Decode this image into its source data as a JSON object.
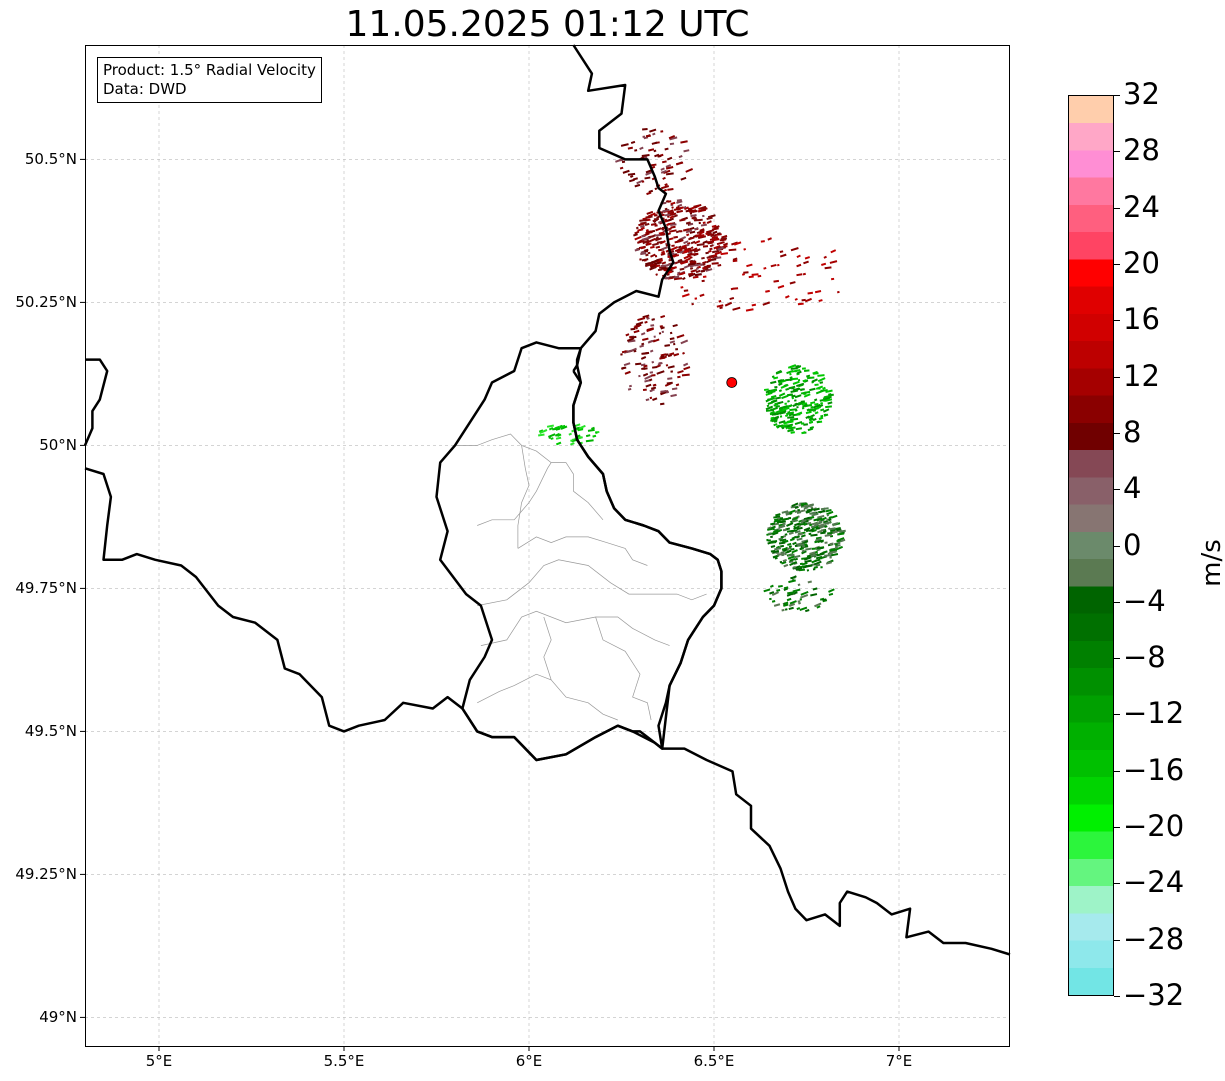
{
  "title": "11.05.2025 01:12 UTC",
  "legend": {
    "product": "Product: 1.5° Radial Velocity",
    "source": "Data: DWD"
  },
  "map": {
    "lon_range": [
      4.8,
      7.3
    ],
    "lat_range": [
      48.95,
      50.7
    ],
    "x_ticks": [
      {
        "value": 5.0,
        "label": "5°E"
      },
      {
        "value": 5.5,
        "label": "5.5°E"
      },
      {
        "value": 6.0,
        "label": "6°E"
      },
      {
        "value": 6.5,
        "label": "6.5°E"
      },
      {
        "value": 7.0,
        "label": "7°E"
      }
    ],
    "y_ticks": [
      {
        "value": 49.0,
        "label": "49°N"
      },
      {
        "value": 49.25,
        "label": "49.25°N"
      },
      {
        "value": 49.5,
        "label": "49.5°N"
      },
      {
        "value": 49.75,
        "label": "49.75°N"
      },
      {
        "value": 50.0,
        "label": "50°N"
      },
      {
        "value": 50.25,
        "label": "50.25°N"
      },
      {
        "value": 50.5,
        "label": "50.5°N"
      }
    ],
    "grid": true,
    "radar_site": {
      "lon": 6.548,
      "lat": 50.11,
      "color": "#ff0000"
    },
    "national_border": [
      [
        [
          6.12,
          50.7
        ],
        [
          6.17,
          50.65
        ],
        [
          6.16,
          50.62
        ],
        [
          6.26,
          50.63
        ],
        [
          6.25,
          50.58
        ],
        [
          6.19,
          50.55
        ],
        [
          6.19,
          50.52
        ],
        [
          6.26,
          50.5
        ],
        [
          6.32,
          50.5
        ],
        [
          6.34,
          50.47
        ],
        [
          6.35,
          50.45
        ],
        [
          6.37,
          50.44
        ],
        [
          6.35,
          50.41
        ],
        [
          6.37,
          50.38
        ],
        [
          6.38,
          50.34
        ],
        [
          6.39,
          50.32
        ],
        [
          6.36,
          50.29
        ],
        [
          6.35,
          50.26
        ],
        [
          6.29,
          50.27
        ],
        [
          6.23,
          50.25
        ],
        [
          6.19,
          50.23
        ],
        [
          6.18,
          50.2
        ],
        [
          6.14,
          50.17
        ],
        [
          6.13,
          50.14
        ],
        [
          6.14,
          50.11
        ],
        [
          6.12,
          50.07
        ],
        [
          6.12,
          50.04
        ],
        [
          6.13,
          50.01
        ],
        [
          6.16,
          49.98
        ],
        [
          6.2,
          49.95
        ],
        [
          6.21,
          49.92
        ],
        [
          6.23,
          49.89
        ],
        [
          6.26,
          49.87
        ],
        [
          6.31,
          49.86
        ],
        [
          6.35,
          49.85
        ],
        [
          6.38,
          49.83
        ],
        [
          6.44,
          49.82
        ],
        [
          6.49,
          49.81
        ],
        [
          6.51,
          49.8
        ],
        [
          6.52,
          49.78
        ],
        [
          6.52,
          49.75
        ],
        [
          6.5,
          49.72
        ],
        [
          6.47,
          49.7
        ],
        [
          6.43,
          49.66
        ],
        [
          6.41,
          49.62
        ],
        [
          6.38,
          49.58
        ],
        [
          6.37,
          49.55
        ],
        [
          6.35,
          49.51
        ],
        [
          6.36,
          49.47
        ],
        [
          6.42,
          49.47
        ],
        [
          6.48,
          49.45
        ],
        [
          6.55,
          49.43
        ],
        [
          6.56,
          49.39
        ],
        [
          6.6,
          49.37
        ],
        [
          6.6,
          49.33
        ],
        [
          6.65,
          49.3
        ],
        [
          6.68,
          49.26
        ],
        [
          6.7,
          49.22
        ],
        [
          6.72,
          49.19
        ],
        [
          6.75,
          49.17
        ],
        [
          6.8,
          49.18
        ],
        [
          6.84,
          49.16
        ],
        [
          6.84,
          49.2
        ],
        [
          6.86,
          49.22
        ],
        [
          6.91,
          49.21
        ],
        [
          6.94,
          49.2
        ],
        [
          6.98,
          49.18
        ],
        [
          7.03,
          49.19
        ],
        [
          7.02,
          49.14
        ],
        [
          7.08,
          49.15
        ],
        [
          7.12,
          49.13
        ],
        [
          7.18,
          49.13
        ],
        [
          7.25,
          49.12
        ],
        [
          7.3,
          49.11
        ]
      ],
      [
        [
          4.8,
          50.15
        ],
        [
          4.84,
          50.15
        ],
        [
          4.86,
          50.13
        ],
        [
          4.84,
          50.08
        ],
        [
          4.82,
          50.06
        ],
        [
          4.82,
          50.03
        ],
        [
          4.8,
          50.0
        ]
      ],
      [
        [
          4.8,
          49.96
        ],
        [
          4.85,
          49.95
        ],
        [
          4.87,
          49.91
        ],
        [
          4.86,
          49.86
        ],
        [
          4.85,
          49.8
        ],
        [
          4.9,
          49.8
        ],
        [
          4.94,
          49.81
        ],
        [
          4.99,
          49.8
        ],
        [
          5.06,
          49.79
        ],
        [
          5.1,
          49.77
        ],
        [
          5.16,
          49.72
        ],
        [
          5.2,
          49.7
        ],
        [
          5.26,
          49.69
        ],
        [
          5.32,
          49.66
        ],
        [
          5.34,
          49.61
        ],
        [
          5.38,
          49.6
        ],
        [
          5.44,
          49.56
        ],
        [
          5.46,
          49.51
        ],
        [
          5.5,
          49.5
        ],
        [
          5.54,
          49.51
        ],
        [
          5.61,
          49.52
        ],
        [
          5.66,
          49.55
        ],
        [
          5.74,
          49.54
        ],
        [
          5.78,
          49.56
        ],
        [
          5.82,
          49.54
        ],
        [
          5.86,
          49.5
        ],
        [
          5.9,
          49.49
        ],
        [
          5.96,
          49.49
        ],
        [
          6.02,
          49.45
        ],
        [
          6.1,
          49.46
        ],
        [
          6.18,
          49.49
        ],
        [
          6.24,
          49.51
        ],
        [
          6.28,
          49.5
        ],
        [
          6.3,
          49.5
        ],
        [
          6.34,
          49.48
        ],
        [
          6.36,
          49.47
        ]
      ]
    ],
    "luxembourg_border": [
      [
        6.12,
        50.13
      ],
      [
        6.13,
        50.14
      ],
      [
        6.13,
        50.15
      ],
      [
        6.14,
        50.17
      ],
      [
        6.12,
        50.17
      ],
      [
        6.08,
        50.17
      ],
      [
        6.02,
        50.18
      ],
      [
        5.98,
        50.17
      ],
      [
        5.96,
        50.13
      ],
      [
        5.9,
        50.11
      ],
      [
        5.88,
        50.08
      ],
      [
        5.86,
        50.06
      ],
      [
        5.8,
        50.0
      ],
      [
        5.76,
        49.97
      ],
      [
        5.75,
        49.91
      ],
      [
        5.78,
        49.85
      ],
      [
        5.76,
        49.8
      ],
      [
        5.83,
        49.74
      ],
      [
        5.87,
        49.72
      ],
      [
        5.9,
        49.66
      ],
      [
        5.88,
        49.63
      ],
      [
        5.84,
        49.59
      ],
      [
        5.82,
        49.54
      ],
      [
        5.86,
        49.5
      ],
      [
        5.9,
        49.49
      ],
      [
        5.96,
        49.49
      ],
      [
        6.02,
        49.45
      ],
      [
        6.1,
        49.46
      ],
      [
        6.18,
        49.49
      ],
      [
        6.24,
        49.51
      ],
      [
        6.28,
        49.5
      ],
      [
        6.34,
        49.48
      ],
      [
        6.36,
        49.47
      ],
      [
        6.38,
        49.58
      ],
      [
        6.41,
        49.62
      ],
      [
        6.43,
        49.66
      ],
      [
        6.47,
        49.7
      ],
      [
        6.5,
        49.72
      ],
      [
        6.52,
        49.75
      ],
      [
        6.52,
        49.78
      ],
      [
        6.51,
        49.8
      ],
      [
        6.49,
        49.81
      ],
      [
        6.44,
        49.82
      ],
      [
        6.38,
        49.83
      ],
      [
        6.35,
        49.85
      ],
      [
        6.31,
        49.86
      ],
      [
        6.26,
        49.87
      ],
      [
        6.23,
        49.89
      ],
      [
        6.21,
        49.92
      ],
      [
        6.2,
        49.95
      ],
      [
        6.16,
        49.98
      ],
      [
        6.13,
        50.01
      ],
      [
        6.12,
        50.04
      ],
      [
        6.12,
        50.07
      ],
      [
        6.14,
        50.11
      ],
      [
        6.12,
        50.13
      ]
    ],
    "internal_borders": [
      [
        [
          5.8,
          50.0
        ],
        [
          5.86,
          50.0
        ],
        [
          5.9,
          50.01
        ],
        [
          5.95,
          50.02
        ],
        [
          5.98,
          50.0
        ],
        [
          6.02,
          49.99
        ],
        [
          6.06,
          49.97
        ],
        [
          6.1,
          49.97
        ],
        [
          6.12,
          49.95
        ],
        [
          6.12,
          49.92
        ]
      ],
      [
        [
          5.86,
          49.86
        ],
        [
          5.9,
          49.87
        ],
        [
          5.96,
          49.87
        ],
        [
          6.0,
          49.9
        ],
        [
          6.02,
          49.92
        ],
        [
          6.05,
          49.96
        ],
        [
          6.06,
          49.97
        ]
      ],
      [
        [
          5.97,
          49.82
        ],
        [
          6.02,
          49.84
        ],
        [
          6.06,
          49.83
        ],
        [
          6.1,
          49.84
        ],
        [
          6.16,
          49.84
        ],
        [
          6.21,
          49.83
        ],
        [
          6.26,
          49.82
        ],
        [
          6.28,
          49.8
        ],
        [
          6.32,
          49.79
        ]
      ],
      [
        [
          5.86,
          49.72
        ],
        [
          5.94,
          49.73
        ],
        [
          6.0,
          49.76
        ],
        [
          6.04,
          49.79
        ],
        [
          6.08,
          49.8
        ],
        [
          6.16,
          49.79
        ],
        [
          6.22,
          49.76
        ],
        [
          6.27,
          49.74
        ],
        [
          6.34,
          49.74
        ],
        [
          6.4,
          49.74
        ],
        [
          6.44,
          49.73
        ],
        [
          6.48,
          49.74
        ]
      ],
      [
        [
          5.87,
          49.65
        ],
        [
          5.94,
          49.66
        ],
        [
          5.98,
          49.7
        ],
        [
          6.02,
          49.71
        ],
        [
          6.1,
          49.69
        ],
        [
          6.18,
          49.7
        ],
        [
          6.24,
          49.7
        ],
        [
          6.28,
          49.68
        ],
        [
          6.34,
          49.66
        ],
        [
          6.38,
          49.65
        ]
      ],
      [
        [
          5.86,
          49.55
        ],
        [
          5.92,
          49.57
        ],
        [
          5.96,
          49.58
        ],
        [
          6.02,
          49.6
        ],
        [
          6.06,
          49.59
        ],
        [
          6.1,
          49.56
        ],
        [
          6.16,
          49.55
        ],
        [
          6.2,
          49.53
        ],
        [
          6.24,
          49.52
        ]
      ],
      [
        [
          6.06,
          49.59
        ],
        [
          6.04,
          49.63
        ],
        [
          6.06,
          49.66
        ],
        [
          6.04,
          49.7
        ]
      ],
      [
        [
          6.18,
          49.7
        ],
        [
          6.2,
          49.66
        ],
        [
          6.26,
          49.64
        ],
        [
          6.3,
          49.6
        ],
        [
          6.28,
          49.56
        ],
        [
          6.32,
          49.55
        ],
        [
          6.33,
          49.52
        ]
      ],
      [
        [
          5.98,
          50.0
        ],
        [
          5.99,
          49.96
        ],
        [
          6.0,
          49.93
        ],
        [
          5.98,
          49.9
        ],
        [
          5.97,
          49.86
        ],
        [
          5.97,
          49.82
        ]
      ],
      [
        [
          6.12,
          49.92
        ],
        [
          6.16,
          49.9
        ],
        [
          6.2,
          49.87
        ]
      ]
    ],
    "echo_clusters": [
      {
        "lon": 6.4,
        "lat": 50.36,
        "rlon": 0.12,
        "rlat": 0.07,
        "n": 380,
        "colors": [
          "#6b0000",
          "#8b0000",
          "#8b0000",
          "#a50000",
          "#7a0c0c",
          "#844250"
        ]
      },
      {
        "lon": 6.33,
        "lat": 50.5,
        "rlon": 0.1,
        "rlat": 0.06,
        "n": 70,
        "colors": [
          "#8b0000",
          "#6b0000",
          "#844250"
        ]
      },
      {
        "lon": 6.6,
        "lat": 50.3,
        "rlon": 0.26,
        "rlat": 0.07,
        "n": 80,
        "colors": [
          "#8b0000",
          "#a50000",
          "#c00000"
        ]
      },
      {
        "lon": 6.33,
        "lat": 50.15,
        "rlon": 0.09,
        "rlat": 0.08,
        "n": 120,
        "colors": [
          "#6b0000",
          "#8b0000",
          "#844250"
        ]
      },
      {
        "lon": 6.72,
        "lat": 50.08,
        "rlon": 0.09,
        "rlat": 0.06,
        "n": 220,
        "colors": [
          "#00b400",
          "#00c800",
          "#009000",
          "#00a000"
        ]
      },
      {
        "lon": 6.74,
        "lat": 49.84,
        "rlon": 0.1,
        "rlat": 0.06,
        "n": 320,
        "colors": [
          "#007000",
          "#006400",
          "#5c7a55",
          "#008000",
          "#4f7a4f"
        ]
      },
      {
        "lon": 6.72,
        "lat": 49.74,
        "rlon": 0.09,
        "rlat": 0.03,
        "n": 50,
        "colors": [
          "#006400",
          "#008000",
          "#5c7a55"
        ]
      },
      {
        "lon": 6.1,
        "lat": 50.02,
        "rlon": 0.1,
        "rlat": 0.02,
        "n": 40,
        "colors": [
          "#00c800",
          "#00b400",
          "#28e428"
        ]
      }
    ]
  },
  "colorbar": {
    "unit": "m/s",
    "min": -32,
    "max": 32,
    "step": 4,
    "colors": [
      "#72e5e5",
      "#8ee8eb",
      "#a6eaed",
      "#9ef3c8",
      "#64f57f",
      "#2cf53c",
      "#00f000",
      "#00d400",
      "#00c000",
      "#00b000",
      "#00a000",
      "#009000",
      "#008000",
      "#007000",
      "#006400",
      "#5b7a52",
      "#6b8a6b",
      "#877572",
      "#896069",
      "#854855",
      "#700000",
      "#8a0000",
      "#a50000",
      "#bd0000",
      "#d10000",
      "#e00000",
      "#ff0000",
      "#ff4463",
      "#ff5f7f",
      "#ff78a0",
      "#ff8ed4",
      "#ffa7c7",
      "#ffceac"
    ],
    "tick_labels": [
      "32",
      "28",
      "24",
      "20",
      "16",
      "12",
      "8",
      "4",
      "0",
      "−4",
      "−8",
      "−12",
      "−16",
      "−20",
      "−24",
      "−28",
      "−32"
    ]
  }
}
